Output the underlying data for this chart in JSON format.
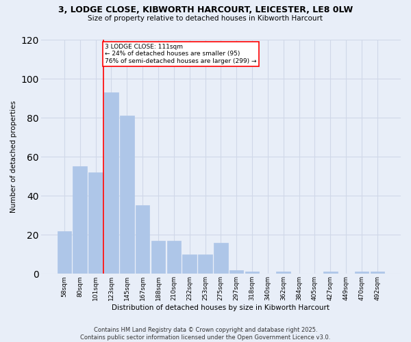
{
  "title1": "3, LODGE CLOSE, KIBWORTH HARCOURT, LEICESTER, LE8 0LW",
  "title2": "Size of property relative to detached houses in Kibworth Harcourt",
  "xlabel": "Distribution of detached houses by size in Kibworth Harcourt",
  "ylabel": "Number of detached properties",
  "bar_labels": [
    "58sqm",
    "80sqm",
    "101sqm",
    "123sqm",
    "145sqm",
    "167sqm",
    "188sqm",
    "210sqm",
    "232sqm",
    "253sqm",
    "275sqm",
    "297sqm",
    "318sqm",
    "340sqm",
    "362sqm",
    "384sqm",
    "405sqm",
    "427sqm",
    "449sqm",
    "470sqm",
    "492sqm"
  ],
  "bar_values": [
    22,
    55,
    52,
    93,
    81,
    35,
    17,
    17,
    10,
    10,
    16,
    2,
    1,
    0,
    1,
    0,
    0,
    1,
    0,
    1,
    1
  ],
  "bar_color": "#aec6e8",
  "bar_edge_color": "#aec6e8",
  "vline_x_idx": 2.5,
  "vline_color": "red",
  "annotation_text": "3 LODGE CLOSE: 111sqm\n← 24% of detached houses are smaller (95)\n76% of semi-detached houses are larger (299) →",
  "annotation_box_color": "white",
  "annotation_box_edge": "red",
  "ylim": [
    0,
    120
  ],
  "yticks": [
    0,
    20,
    40,
    60,
    80,
    100,
    120
  ],
  "grid_color": "#d0d8e8",
  "background_color": "#e8eef8",
  "footnote": "Contains HM Land Registry data © Crown copyright and database right 2025.\nContains public sector information licensed under the Open Government Licence v3.0."
}
